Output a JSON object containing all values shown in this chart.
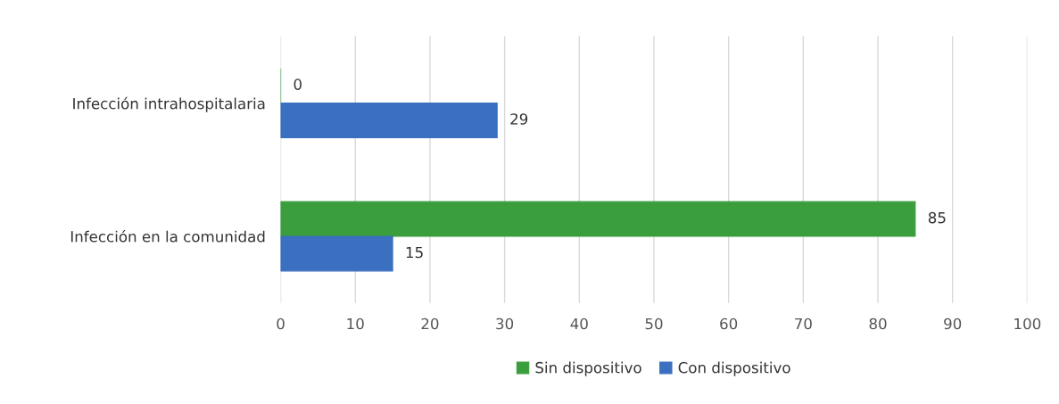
{
  "chart_data": {
    "type": "bar",
    "orientation": "horizontal",
    "categories": [
      "Infección intrahospitalaria",
      "Infección en la comunidad"
    ],
    "series": [
      {
        "name": "Sin dispositivo",
        "color": "#3a9e3c",
        "values": [
          0,
          85
        ]
      },
      {
        "name": "Con dispositivo",
        "color": "#3b6fc0",
        "values": [
          29,
          15
        ]
      }
    ],
    "xlim": [
      0,
      100
    ],
    "xticks": [
      0,
      10,
      20,
      30,
      40,
      50,
      60,
      70,
      80,
      90,
      100
    ],
    "grid": "x",
    "data_labels": true,
    "legend": "bottom"
  }
}
